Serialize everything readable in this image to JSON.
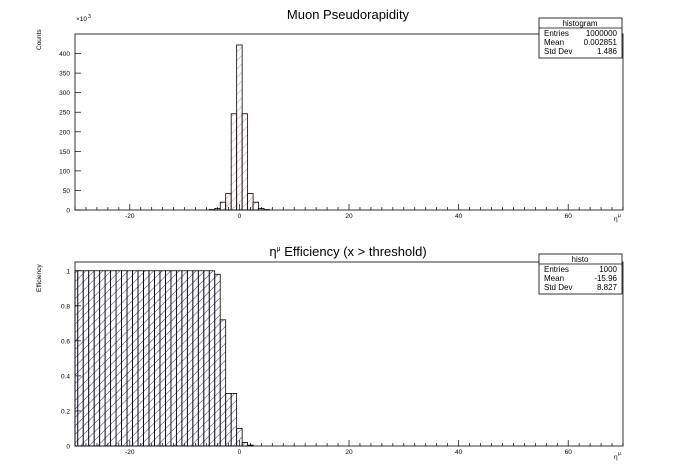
{
  "chart_data": [
    {
      "type": "bar",
      "title": "Muon Pseudorapidity",
      "xlabel": "η^μ",
      "ylabel": "Counts",
      "y_multiplier": "×10^3",
      "xlim": [
        -30,
        70
      ],
      "ylim": [
        0,
        450
      ],
      "x_ticks": [
        -20,
        0,
        20,
        40,
        60
      ],
      "y_ticks": [
        0,
        50,
        100,
        150,
        200,
        250,
        300,
        350,
        400
      ],
      "fill_pattern": "diagonal-hatch",
      "fill_color": "#d4928f",
      "bin_width": 1,
      "bins": [
        {
          "x": -5,
          "value": 1
        },
        {
          "x": -4,
          "value": 4
        },
        {
          "x": -3,
          "value": 20
        },
        {
          "x": -2,
          "value": 42
        },
        {
          "x": -1,
          "value": 246
        },
        {
          "x": 0,
          "value": 422
        },
        {
          "x": 1,
          "value": 246
        },
        {
          "x": 2,
          "value": 42
        },
        {
          "x": 3,
          "value": 20
        },
        {
          "x": 4,
          "value": 4
        },
        {
          "x": 5,
          "value": 1
        }
      ],
      "stats": {
        "title": "histogram",
        "rows": [
          {
            "label": "Entries",
            "value": "1000000"
          },
          {
            "label": "Mean",
            "value": "0.002851"
          },
          {
            "label": "Std Dev",
            "value": "1.486"
          }
        ]
      }
    },
    {
      "type": "bar",
      "title_prefix": "η",
      "title_sup": "μ",
      "title": " Efficiency (x > threshold)",
      "xlabel": "η^μ",
      "ylabel": "Efficiency",
      "xlim": [
        -30,
        70
      ],
      "ylim": [
        0,
        1.05
      ],
      "x_ticks": [
        -20,
        0,
        20,
        40,
        60
      ],
      "y_ticks": [
        0,
        0.2,
        0.4,
        0.6,
        0.8,
        1
      ],
      "y_tick_labels": [
        "0",
        "0.2",
        "0.4",
        "0.6",
        "0.8",
        "1"
      ],
      "fill_pattern": "diagonal-hatch",
      "fill_color": "#3a2f8c",
      "bin_width": 1,
      "bins": [
        {
          "x": -30,
          "value": 1
        },
        {
          "x": -29,
          "value": 1
        },
        {
          "x": -28,
          "value": 1
        },
        {
          "x": -27,
          "value": 1
        },
        {
          "x": -26,
          "value": 1
        },
        {
          "x": -25,
          "value": 1
        },
        {
          "x": -24,
          "value": 1
        },
        {
          "x": -23,
          "value": 1
        },
        {
          "x": -22,
          "value": 1
        },
        {
          "x": -21,
          "value": 1
        },
        {
          "x": -20,
          "value": 1
        },
        {
          "x": -19,
          "value": 1
        },
        {
          "x": -18,
          "value": 1
        },
        {
          "x": -17,
          "value": 1
        },
        {
          "x": -16,
          "value": 1
        },
        {
          "x": -15,
          "value": 1
        },
        {
          "x": -14,
          "value": 1
        },
        {
          "x": -13,
          "value": 1
        },
        {
          "x": -12,
          "value": 1
        },
        {
          "x": -11,
          "value": 1
        },
        {
          "x": -10,
          "value": 1
        },
        {
          "x": -9,
          "value": 1
        },
        {
          "x": -8,
          "value": 1
        },
        {
          "x": -7,
          "value": 1
        },
        {
          "x": -6,
          "value": 1
        },
        {
          "x": -5,
          "value": 1
        },
        {
          "x": -4,
          "value": 0.98
        },
        {
          "x": -3,
          "value": 0.72
        },
        {
          "x": -2,
          "value": 0.3
        },
        {
          "x": -1,
          "value": 0.3
        },
        {
          "x": 0,
          "value": 0.1
        },
        {
          "x": 1,
          "value": 0.02
        },
        {
          "x": 2,
          "value": 0.005
        }
      ],
      "stats": {
        "title": "histo",
        "rows": [
          {
            "label": "Entries",
            "value": "1000"
          },
          {
            "label": "Mean",
            "value": "-15.96"
          },
          {
            "label": "Std Dev",
            "value": "8.827"
          }
        ]
      }
    }
  ]
}
